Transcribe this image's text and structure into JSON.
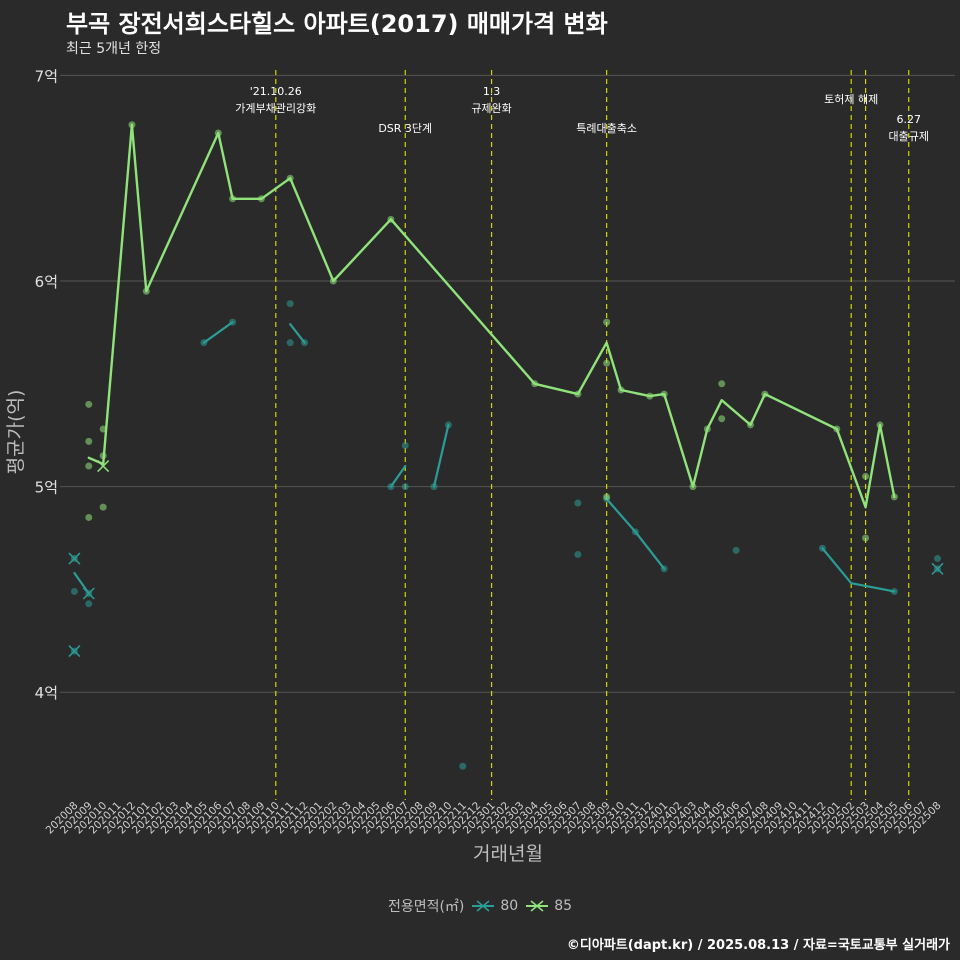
{
  "title": "부곡 장전서희스타힐스 아파트(2017) 매매가격 변화",
  "subtitle": "최근 5개년 한정",
  "caption": "©디아파트(dapt.kr) / 2025.08.13 / 자료=국토교통부 실거래가",
  "colors": {
    "background": "#2a2a2a",
    "grid": "#555555",
    "series80": "#2a9d96",
    "series85": "#8fe37a",
    "events": "#d4d600",
    "text": "#ffffff",
    "axis": "#bdbdbd"
  },
  "chart_data": {
    "type": "line",
    "xlabel": "거래년월",
    "ylabel": "평균가(억)",
    "ylim": [
      3.5,
      7.05
    ],
    "yticks": [
      {
        "value": 4,
        "label": "4억"
      },
      {
        "value": 5,
        "label": "5억"
      },
      {
        "value": 6,
        "label": "6억"
      },
      {
        "value": 7,
        "label": "7억"
      }
    ],
    "categories": [
      "202008",
      "202009",
      "202010",
      "202011",
      "202012",
      "202101",
      "202102",
      "202103",
      "202104",
      "202105",
      "202106",
      "202107",
      "202108",
      "202109",
      "202110",
      "202111",
      "202112",
      "202201",
      "202202",
      "202203",
      "202204",
      "202205",
      "202206",
      "202207",
      "202208",
      "202209",
      "202210",
      "202211",
      "202212",
      "202301",
      "202302",
      "202303",
      "202304",
      "202305",
      "202306",
      "202307",
      "202308",
      "202309",
      "202310",
      "202311",
      "202312",
      "202401",
      "202402",
      "202403",
      "202404",
      "202405",
      "202406",
      "202407",
      "202408",
      "202409",
      "202410",
      "202411",
      "202412",
      "202501",
      "202502",
      "202503",
      "202504",
      "202505",
      "202506",
      "202507",
      "202508"
    ],
    "legend_title": "전용면적(㎡)",
    "series": [
      {
        "name": "80",
        "segments": [
          [
            {
              "x": "202008",
              "y": 4.58
            },
            {
              "x": "202009",
              "y": 4.48
            }
          ],
          [
            {
              "x": "202105",
              "y": 5.7
            },
            {
              "x": "202107",
              "y": 5.8
            }
          ],
          [
            {
              "x": "202111",
              "y": 5.79
            },
            {
              "x": "202112",
              "y": 5.7
            }
          ],
          [
            {
              "x": "202206",
              "y": 5.0
            },
            {
              "x": "202207",
              "y": 5.1
            }
          ],
          [
            {
              "x": "202209",
              "y": 5.0
            },
            {
              "x": "202210",
              "y": 5.3
            }
          ],
          [
            {
              "x": "202309",
              "y": 4.94
            },
            {
              "x": "202311",
              "y": 4.78
            },
            {
              "x": "202401",
              "y": 4.6
            }
          ],
          [
            {
              "x": "202412",
              "y": 4.7
            },
            {
              "x": "202502",
              "y": 4.53
            },
            {
              "x": "202505",
              "y": 4.49
            }
          ]
        ],
        "points": [
          {
            "x": "202008",
            "y": 4.65
          },
          {
            "x": "202008",
            "y": 4.49
          },
          {
            "x": "202008",
            "y": 4.2
          },
          {
            "x": "202009",
            "y": 4.43
          },
          {
            "x": "202009",
            "y": 4.48
          },
          {
            "x": "202105",
            "y": 5.7
          },
          {
            "x": "202107",
            "y": 5.8
          },
          {
            "x": "202111",
            "y": 5.89
          },
          {
            "x": "202111",
            "y": 5.7
          },
          {
            "x": "202112",
            "y": 5.7
          },
          {
            "x": "202206",
            "y": 5.0
          },
          {
            "x": "202207",
            "y": 5.0
          },
          {
            "x": "202207",
            "y": 5.2
          },
          {
            "x": "202209",
            "y": 5.0
          },
          {
            "x": "202210",
            "y": 5.3
          },
          {
            "x": "202211",
            "y": 3.64
          },
          {
            "x": "202307",
            "y": 4.92
          },
          {
            "x": "202307",
            "y": 4.67
          },
          {
            "x": "202309",
            "y": 4.94
          },
          {
            "x": "202311",
            "y": 4.78
          },
          {
            "x": "202401",
            "y": 4.6
          },
          {
            "x": "202406",
            "y": 4.69
          },
          {
            "x": "202412",
            "y": 4.7
          },
          {
            "x": "202505",
            "y": 4.49
          },
          {
            "x": "202508",
            "y": 4.65
          },
          {
            "x": "202508",
            "y": 4.6
          }
        ],
        "crosses": [
          {
            "x": "202008",
            "y": 4.65
          },
          {
            "x": "202008",
            "y": 4.2
          },
          {
            "x": "202009",
            "y": 4.48
          },
          {
            "x": "202508",
            "y": 4.6
          }
        ]
      },
      {
        "name": "85",
        "segments": [
          [
            {
              "x": "202009",
              "y": 5.14
            },
            {
              "x": "202010",
              "y": 5.11
            },
            {
              "x": "202012",
              "y": 6.76
            },
            {
              "x": "202101",
              "y": 5.95
            },
            {
              "x": "202106",
              "y": 6.72
            },
            {
              "x": "202107",
              "y": 6.4
            },
            {
              "x": "202109",
              "y": 6.4
            },
            {
              "x": "202111",
              "y": 6.5
            },
            {
              "x": "202202",
              "y": 6.0
            },
            {
              "x": "202206",
              "y": 6.3
            },
            {
              "x": "202304",
              "y": 5.5
            },
            {
              "x": "202307",
              "y": 5.45
            },
            {
              "x": "202309",
              "y": 5.7
            },
            {
              "x": "202310",
              "y": 5.47
            },
            {
              "x": "202312",
              "y": 5.44
            },
            {
              "x": "202401",
              "y": 5.45
            },
            {
              "x": "202403",
              "y": 5.0
            },
            {
              "x": "202404",
              "y": 5.28
            },
            {
              "x": "202405",
              "y": 5.42
            },
            {
              "x": "202407",
              "y": 5.3
            },
            {
              "x": "202408",
              "y": 5.45
            },
            {
              "x": "202501",
              "y": 5.28
            },
            {
              "x": "202503",
              "y": 4.9
            },
            {
              "x": "202504",
              "y": 5.3
            },
            {
              "x": "202505",
              "y": 4.95
            }
          ]
        ],
        "points": [
          {
            "x": "202009",
            "y": 5.4
          },
          {
            "x": "202009",
            "y": 5.22
          },
          {
            "x": "202009",
            "y": 5.1
          },
          {
            "x": "202009",
            "y": 4.85
          },
          {
            "x": "202010",
            "y": 5.28
          },
          {
            "x": "202010",
            "y": 5.15
          },
          {
            "x": "202010",
            "y": 4.9
          },
          {
            "x": "202012",
            "y": 6.76
          },
          {
            "x": "202101",
            "y": 5.95
          },
          {
            "x": "202106",
            "y": 6.72
          },
          {
            "x": "202107",
            "y": 6.4
          },
          {
            "x": "202109",
            "y": 6.4
          },
          {
            "x": "202111",
            "y": 6.5
          },
          {
            "x": "202202",
            "y": 6.0
          },
          {
            "x": "202206",
            "y": 6.3
          },
          {
            "x": "202304",
            "y": 5.5
          },
          {
            "x": "202307",
            "y": 5.45
          },
          {
            "x": "202309",
            "y": 5.8
          },
          {
            "x": "202309",
            "y": 5.6
          },
          {
            "x": "202309",
            "y": 4.95
          },
          {
            "x": "202310",
            "y": 5.47
          },
          {
            "x": "202312",
            "y": 5.44
          },
          {
            "x": "202401",
            "y": 5.45
          },
          {
            "x": "202403",
            "y": 5.0
          },
          {
            "x": "202404",
            "y": 5.28
          },
          {
            "x": "202405",
            "y": 5.5
          },
          {
            "x": "202405",
            "y": 5.33
          },
          {
            "x": "202407",
            "y": 5.3
          },
          {
            "x": "202408",
            "y": 5.45
          },
          {
            "x": "202501",
            "y": 5.28
          },
          {
            "x": "202503",
            "y": 5.05
          },
          {
            "x": "202503",
            "y": 4.75
          },
          {
            "x": "202504",
            "y": 5.3
          },
          {
            "x": "202505",
            "y": 4.95
          }
        ],
        "crosses": [
          {
            "x": "202010",
            "y": 5.1
          }
        ]
      }
    ],
    "events": [
      {
        "x": "202110",
        "lines": [
          "'21.10.26",
          "가계부채관리강화"
        ],
        "level": 0
      },
      {
        "x": "202207",
        "lines": [
          "DSR 3단계"
        ],
        "level": 2
      },
      {
        "x": "202301",
        "lines": [
          "1.3",
          "규제완화"
        ],
        "level": 0
      },
      {
        "x": "202309",
        "lines": [
          "특례대출축소"
        ],
        "level": 2
      },
      {
        "x": "202502",
        "lines": [
          "토허제 해제"
        ],
        "level": 1
      },
      {
        "x": "202503",
        "lines": [],
        "level": 1
      },
      {
        "x": "202506",
        "lines": [
          "6.27",
          "대출규제"
        ],
        "level": 3
      }
    ]
  }
}
